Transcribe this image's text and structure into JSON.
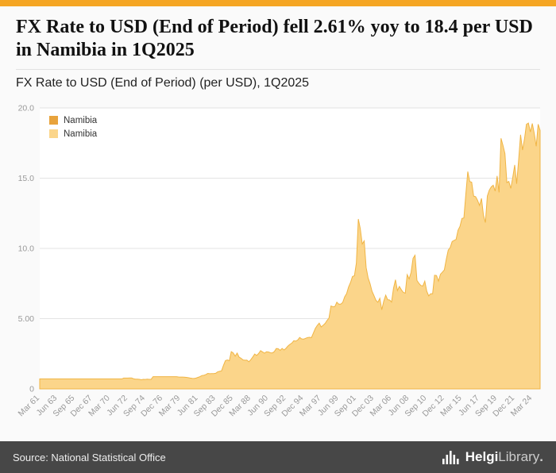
{
  "theme": {
    "accent": "#F5A623",
    "footer_bg": "#474747"
  },
  "header": {
    "title": "FX Rate to USD (End of Period) fell 2.61% yoy to 18.4 per USD in Namibia in 1Q2025",
    "subtitle": "FX Rate to USD (End of Period) (per USD), 1Q2025"
  },
  "legend": {
    "items": [
      {
        "label": "Namibia",
        "color": "#E8A33C"
      },
      {
        "label": "Namibia",
        "color": "#FBD58A"
      }
    ]
  },
  "footer": {
    "source": "Source: National Statistical Office",
    "logo_bold": "Helgi",
    "logo_light": "Library",
    "logo_dot": "."
  },
  "chart_data": {
    "type": "area",
    "title": "FX Rate to USD (End of Period) (per USD), 1Q2025",
    "series_name": "Namibia",
    "frequency": "quarterly",
    "x_start": "Mar 1961",
    "x_end": "Mar 2025",
    "ylim": [
      0,
      20
    ],
    "grid": true,
    "legend_position": "top-left",
    "y_ticks": [
      {
        "v": 0,
        "label": "0"
      },
      {
        "v": 5,
        "label": "5.00"
      },
      {
        "v": 10,
        "label": "10.0"
      },
      {
        "v": 15,
        "label": "15.0"
      },
      {
        "v": 20,
        "label": "20.0"
      }
    ],
    "x_tick_step_quarters": 9,
    "x_tick_labels": [
      "Mar 61",
      "Jun 63",
      "Sep 65",
      "Dec 67",
      "Mar 70",
      "Jun 72",
      "Sep 74",
      "Dec 76",
      "Mar 79",
      "Jun 81",
      "Sep 83",
      "Dec 85",
      "Mar 88",
      "Jun 90",
      "Sep 92",
      "Dec 94",
      "Mar 97",
      "Jun 99",
      "Sep 01",
      "Dec 03",
      "Mar 06",
      "Jun 08",
      "Sep 10",
      "Dec 12",
      "Mar 15",
      "Jun 17",
      "Sep 19",
      "Dec 21",
      "Mar 24"
    ],
    "colors": {
      "area_fill": "#FBD58A",
      "area_stroke": "#F0B545",
      "grid": "#e3e3e3",
      "axis": "#c8c8c8",
      "tick_text": "#999999",
      "plot_bg": "#ffffff"
    },
    "values": [
      0.71,
      0.71,
      0.71,
      0.71,
      0.71,
      0.71,
      0.71,
      0.71,
      0.71,
      0.71,
      0.71,
      0.71,
      0.71,
      0.71,
      0.71,
      0.71,
      0.71,
      0.71,
      0.71,
      0.71,
      0.71,
      0.71,
      0.71,
      0.71,
      0.71,
      0.71,
      0.71,
      0.71,
      0.71,
      0.71,
      0.71,
      0.71,
      0.71,
      0.71,
      0.71,
      0.71,
      0.71,
      0.71,
      0.71,
      0.71,
      0.71,
      0.71,
      0.71,
      0.77,
      0.77,
      0.77,
      0.78,
      0.78,
      0.72,
      0.69,
      0.69,
      0.68,
      0.65,
      0.68,
      0.67,
      0.69,
      0.68,
      0.68,
      0.87,
      0.87,
      0.87,
      0.87,
      0.87,
      0.87,
      0.87,
      0.87,
      0.87,
      0.87,
      0.87,
      0.87,
      0.87,
      0.85,
      0.84,
      0.84,
      0.83,
      0.82,
      0.8,
      0.77,
      0.75,
      0.74,
      0.77,
      0.82,
      0.87,
      0.95,
      0.97,
      1.02,
      1.1,
      1.08,
      1.09,
      1.09,
      1.11,
      1.21,
      1.25,
      1.28,
      1.67,
      2.01,
      2.06,
      2.0,
      2.65,
      2.56,
      2.33,
      2.55,
      2.26,
      2.18,
      2.06,
      2.04,
      2.05,
      1.93,
      2.08,
      2.27,
      2.48,
      2.38,
      2.52,
      2.72,
      2.63,
      2.54,
      2.64,
      2.63,
      2.57,
      2.56,
      2.65,
      2.87,
      2.86,
      2.74,
      2.88,
      2.77,
      2.89,
      3.05,
      3.17,
      3.26,
      3.43,
      3.4,
      3.48,
      3.66,
      3.56,
      3.54,
      3.6,
      3.65,
      3.67,
      3.65,
      3.97,
      4.3,
      4.52,
      4.68,
      4.41,
      4.53,
      4.66,
      4.87,
      5.05,
      5.9,
      5.85,
      5.86,
      6.17,
      6.03,
      6.03,
      6.15,
      6.55,
      6.78,
      7.25,
      7.57,
      8.0,
      8.05,
      8.96,
      12.09,
      11.41,
      10.31,
      10.54,
      8.64,
      7.91,
      7.49,
      6.95,
      6.64,
      6.31,
      6.17,
      6.45,
      5.63,
      6.24,
      6.67,
      6.35,
      6.33,
      6.18,
      7.17,
      7.77,
      7.0,
      7.29,
      7.06,
      6.87,
      6.81,
      8.13,
      7.83,
      8.3,
      9.3,
      9.51,
      7.72,
      7.51,
      7.36,
      7.32,
      7.67,
      6.96,
      6.62,
      6.77,
      6.77,
      8.09,
      8.07,
      7.67,
      8.16,
      8.31,
      8.47,
      9.23,
      9.88,
      10.06,
      10.49,
      10.57,
      10.64,
      11.29,
      11.57,
      12.13,
      12.17,
      13.86,
      15.47,
      14.76,
      14.71,
      13.72,
      13.68,
      13.42,
      13.06,
      13.56,
      12.38,
      11.84,
      13.73,
      14.15,
      14.38,
      14.5,
      14.08,
      15.16,
      13.99,
      17.84,
      17.33,
      16.75,
      14.69,
      14.77,
      14.27,
      15.06,
      15.94,
      14.6,
      16.27,
      18.09,
      17.0,
      17.79,
      18.83,
      18.92,
      18.29,
      18.89,
      18.19,
      17.27,
      18.84,
      18.4
    ]
  }
}
